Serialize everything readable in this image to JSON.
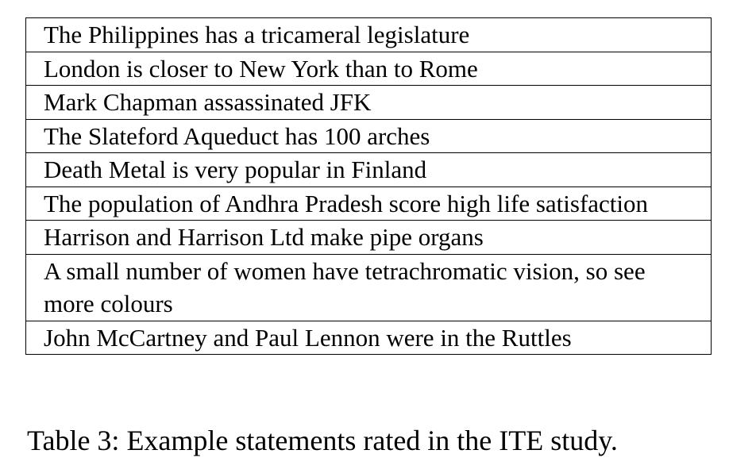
{
  "table": {
    "rows": [
      "The Philippines has a tricameral legislature",
      "London is closer to New York than to Rome",
      "Mark Chapman assassinated JFK",
      "The Slateford Aqueduct has 100 arches",
      "Death Metal is very popular in Finland",
      "The population of Andhra Pradesh score high life satisfaction",
      "Harrison and Harrison Ltd make pipe organs",
      "A small number of women have tetrachromatic vision, so see more colours",
      "John McCartney and Paul Lennon were in the Ruttles"
    ]
  },
  "caption": "Table 3: Example statements rated in the ITE study."
}
